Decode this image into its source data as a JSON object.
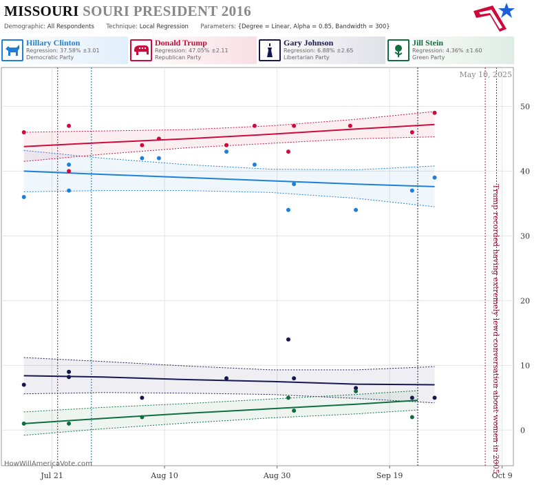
{
  "header": {
    "title_part1": "MISSOURI",
    "title_part2": "SOURI PRESIDENT 2016",
    "demographic_label": "Demographic:",
    "demographic_value": "All Respondents",
    "technique_label": "Technique:",
    "technique_value": "Local Regression",
    "parameters_label": "Parameters:",
    "parameters_value": "{Degree = Linear, Alpha = 0.85, Bandwidth = 300}"
  },
  "candidates": [
    {
      "name": "Hillary Clinton",
      "regression": "Regression: 37.58% ±3.01",
      "party": "Democratic Party",
      "color": "#1e7fd8",
      "icon": "donkey-icon"
    },
    {
      "name": "Donald Trump",
      "regression": "Regression: 47.05% ±2.11",
      "party": "Republican Party",
      "color": "#cc0a3c",
      "icon": "elephant-icon"
    },
    {
      "name": "Gary Johnson",
      "regression": "Regression: 6.88% ±2.65",
      "party": "Libertarian Party",
      "color": "#161650",
      "icon": "liberty-torch-icon"
    },
    {
      "name": "Jill Stein",
      "regression": "Regression: 4.36% ±1.60",
      "party": "Green Party",
      "color": "#0e6e3e",
      "icon": "sunflower-icon"
    }
  ],
  "credit": "HowWillAmericaVote.com",
  "chart_data": {
    "type": "scatter",
    "date_label": "May 10, 2025",
    "x_ticks": [
      "Jul 21",
      "Aug 10",
      "Aug 30",
      "Sep 19",
      "Oct 9"
    ],
    "x_tick_days": [
      21,
      41,
      61,
      81,
      101
    ],
    "y_ticks": [
      0,
      10,
      20,
      30,
      40,
      50
    ],
    "xlim": [
      12,
      103
    ],
    "ylim": [
      -5.5,
      56
    ],
    "grid": true,
    "annotation": "Trump recorded having extremely lewd conversation about women in 2005",
    "vlines": [
      {
        "day": 22,
        "color": "#8a1538"
      },
      {
        "day": 28,
        "color": "#1e6fa0"
      },
      {
        "day": 86,
        "color": "#161650"
      },
      {
        "day": 98,
        "color": "#cc0a3c"
      },
      {
        "day": 100,
        "color": "#cc0a3c"
      }
    ],
    "series": [
      {
        "name": "Hillary Clinton",
        "color": "#1e7fd8",
        "points": [
          [
            16,
            36
          ],
          [
            24,
            41
          ],
          [
            24,
            37
          ],
          [
            37,
            42
          ],
          [
            40,
            42
          ],
          [
            52,
            43
          ],
          [
            57,
            41
          ],
          [
            63,
            34
          ],
          [
            64,
            38
          ],
          [
            75,
            34
          ],
          [
            85,
            37
          ],
          [
            89,
            39
          ]
        ],
        "trend": [
          [
            16,
            40.0
          ],
          [
            30,
            39.5
          ],
          [
            45,
            39.0
          ],
          [
            60,
            38.5
          ],
          [
            75,
            38.0
          ],
          [
            89,
            37.6
          ]
        ],
        "upper": [
          [
            16,
            43.2
          ],
          [
            30,
            42.0
          ],
          [
            45,
            41.0
          ],
          [
            60,
            40.3
          ],
          [
            75,
            40.2
          ],
          [
            89,
            40.8
          ]
        ],
        "lower": [
          [
            16,
            36.8
          ],
          [
            30,
            37.0
          ],
          [
            45,
            37.0
          ],
          [
            60,
            36.7
          ],
          [
            75,
            35.8
          ],
          [
            89,
            34.5
          ]
        ]
      },
      {
        "name": "Donald Trump",
        "color": "#cc0a3c",
        "points": [
          [
            16,
            46
          ],
          [
            24,
            47
          ],
          [
            24,
            40
          ],
          [
            37,
            44
          ],
          [
            40,
            45
          ],
          [
            52,
            44
          ],
          [
            57,
            47
          ],
          [
            63,
            43
          ],
          [
            64,
            47
          ],
          [
            74,
            47
          ],
          [
            85,
            46
          ],
          [
            89,
            49
          ]
        ],
        "trend": [
          [
            16,
            43.8
          ],
          [
            30,
            44.4
          ],
          [
            45,
            45.0
          ],
          [
            60,
            45.7
          ],
          [
            75,
            46.5
          ],
          [
            89,
            47.2
          ]
        ],
        "upper": [
          [
            16,
            46.0
          ],
          [
            30,
            46.2
          ],
          [
            45,
            46.4
          ],
          [
            60,
            47.0
          ],
          [
            75,
            48.0
          ],
          [
            89,
            49.2
          ]
        ],
        "lower": [
          [
            16,
            41.5
          ],
          [
            30,
            42.6
          ],
          [
            45,
            43.6
          ],
          [
            60,
            44.3
          ],
          [
            75,
            45.0
          ],
          [
            89,
            45.3
          ]
        ]
      },
      {
        "name": "Gary Johnson",
        "color": "#161650",
        "points": [
          [
            16,
            7
          ],
          [
            24,
            9
          ],
          [
            24,
            8.2
          ],
          [
            37,
            5
          ],
          [
            52,
            8
          ],
          [
            63,
            14
          ],
          [
            64,
            8
          ],
          [
            75,
            6.5
          ],
          [
            85,
            5
          ],
          [
            89,
            5
          ]
        ],
        "trend": [
          [
            16,
            8.4
          ],
          [
            30,
            8.2
          ],
          [
            45,
            7.8
          ],
          [
            60,
            7.5
          ],
          [
            75,
            7.1
          ],
          [
            89,
            7.0
          ]
        ],
        "upper": [
          [
            16,
            11.2
          ],
          [
            30,
            10.6
          ],
          [
            45,
            9.9
          ],
          [
            60,
            9.3
          ],
          [
            75,
            9.3
          ],
          [
            89,
            9.8
          ]
        ],
        "lower": [
          [
            16,
            5.6
          ],
          [
            30,
            5.8
          ],
          [
            45,
            5.7
          ],
          [
            60,
            5.5
          ],
          [
            75,
            4.9
          ],
          [
            89,
            4.2
          ]
        ]
      },
      {
        "name": "Jill Stein",
        "color": "#0e6e3e",
        "points": [
          [
            16,
            1
          ],
          [
            24,
            1
          ],
          [
            37,
            2
          ],
          [
            63,
            5
          ],
          [
            64,
            3
          ],
          [
            75,
            6
          ],
          [
            85,
            2
          ]
        ],
        "trend": [
          [
            16,
            1.0
          ],
          [
            30,
            1.8
          ],
          [
            45,
            2.6
          ],
          [
            60,
            3.3
          ],
          [
            75,
            4.0
          ],
          [
            86,
            4.6
          ]
        ],
        "upper": [
          [
            16,
            2.8
          ],
          [
            30,
            3.5
          ],
          [
            45,
            4.1
          ],
          [
            60,
            4.8
          ],
          [
            75,
            5.5
          ],
          [
            86,
            6.1
          ]
        ],
        "lower": [
          [
            16,
            -0.8
          ],
          [
            30,
            0.2
          ],
          [
            45,
            1.1
          ],
          [
            60,
            1.9
          ],
          [
            75,
            2.5
          ],
          [
            86,
            3.1
          ]
        ]
      }
    ]
  }
}
